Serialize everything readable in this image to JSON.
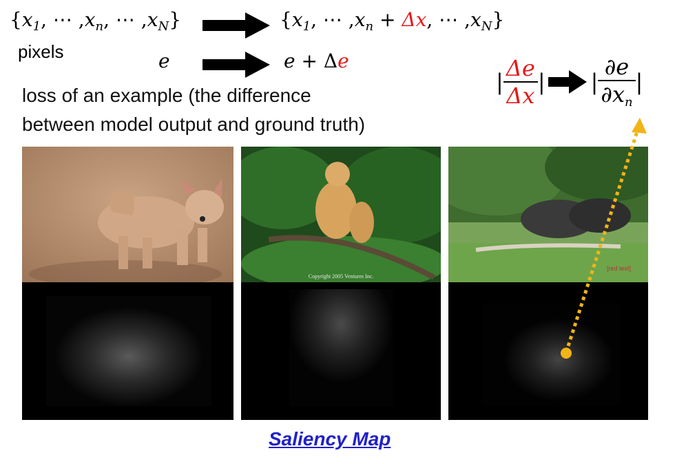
{
  "equation_top_left": {
    "open": "{",
    "x1": "x",
    "x1_sub": "1",
    "dots1": ", ⋯ ,",
    "xn": "x",
    "xn_sub": "n",
    "dots2": ", ⋯ ,",
    "xN": "x",
    "xN_sub": "N",
    "close": "}"
  },
  "equation_top_right": {
    "open": "{",
    "x1": "x",
    "x1_sub": "1",
    "dots1": ", ⋯ ,",
    "xn": "x",
    "xn_sub": "n",
    "plus": " + ",
    "delta_x": "Δx",
    "dots2": ", ⋯ ,",
    "xN": "x",
    "xN_sub": "N",
    "close": "}"
  },
  "pixels_label": "pixels",
  "e_left": "e",
  "e_right": {
    "e": "e",
    "plus": " + ",
    "delta": "Δ",
    "delta_e_e": "e"
  },
  "loss_text": {
    "line1": "loss of an example (the difference",
    "line2": "between model output and ground truth)"
  },
  "gradient_formula": {
    "left_bar": "|",
    "ratio_num": "Δe",
    "ratio_den": "Δx",
    "right_bar": "|",
    "partial_num": "∂e",
    "partial_den_d": "∂x",
    "partial_den_sub": "n"
  },
  "caption": "Saliency Map",
  "colors": {
    "red": "#e41a1a",
    "arrow": "#f2b416",
    "link": "#2121c8"
  }
}
